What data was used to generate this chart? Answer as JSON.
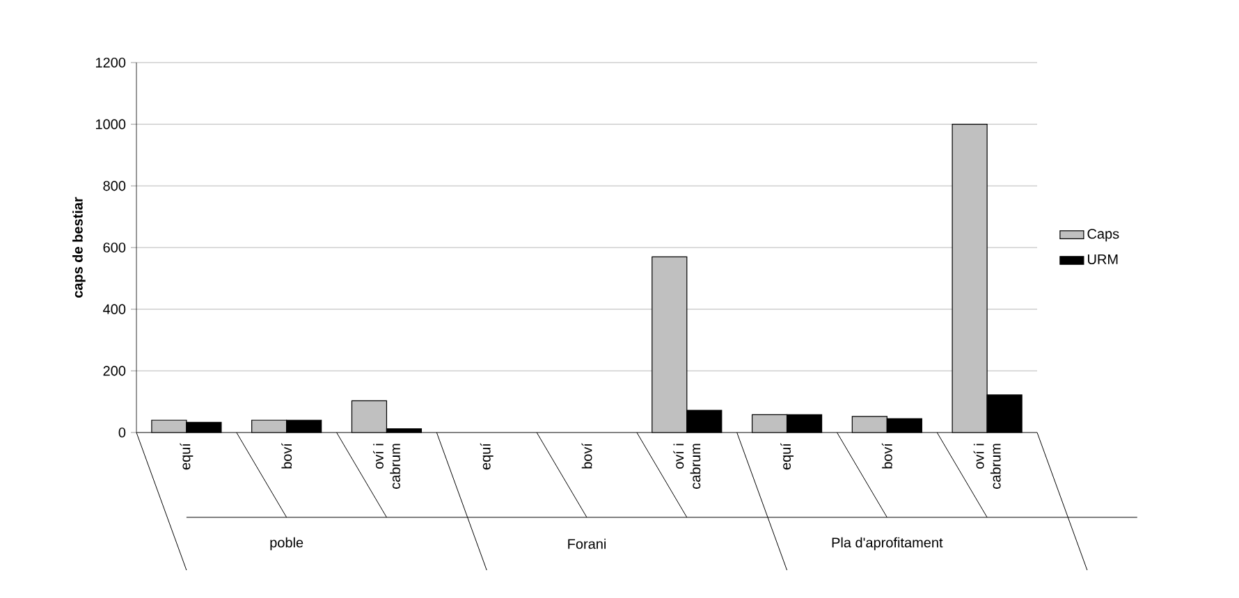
{
  "chart_data": {
    "type": "bar",
    "ylabel": "caps de bestiar",
    "categories": [
      "equí",
      "boví",
      "oví i cabrum",
      "equí",
      "boví",
      "oví i cabrum",
      "equí",
      "boví",
      "oví i cabrum"
    ],
    "series": [
      {
        "name": "Caps",
        "color": "#c0c0c0",
        "values": [
          40,
          40,
          103,
          null,
          null,
          570,
          58,
          52,
          1000
        ]
      },
      {
        "name": "URM",
        "color": "#000000",
        "values": [
          33,
          40,
          12,
          null,
          null,
          72,
          58,
          45,
          122
        ]
      }
    ],
    "annotations": [
      "poble",
      "Forani",
      "Pla d'aprofitament"
    ],
    "ylim": [
      0,
      1200
    ],
    "yticks": [
      0,
      200,
      400,
      600,
      800,
      1000,
      1200
    ],
    "grid": "y",
    "legend": "right"
  }
}
